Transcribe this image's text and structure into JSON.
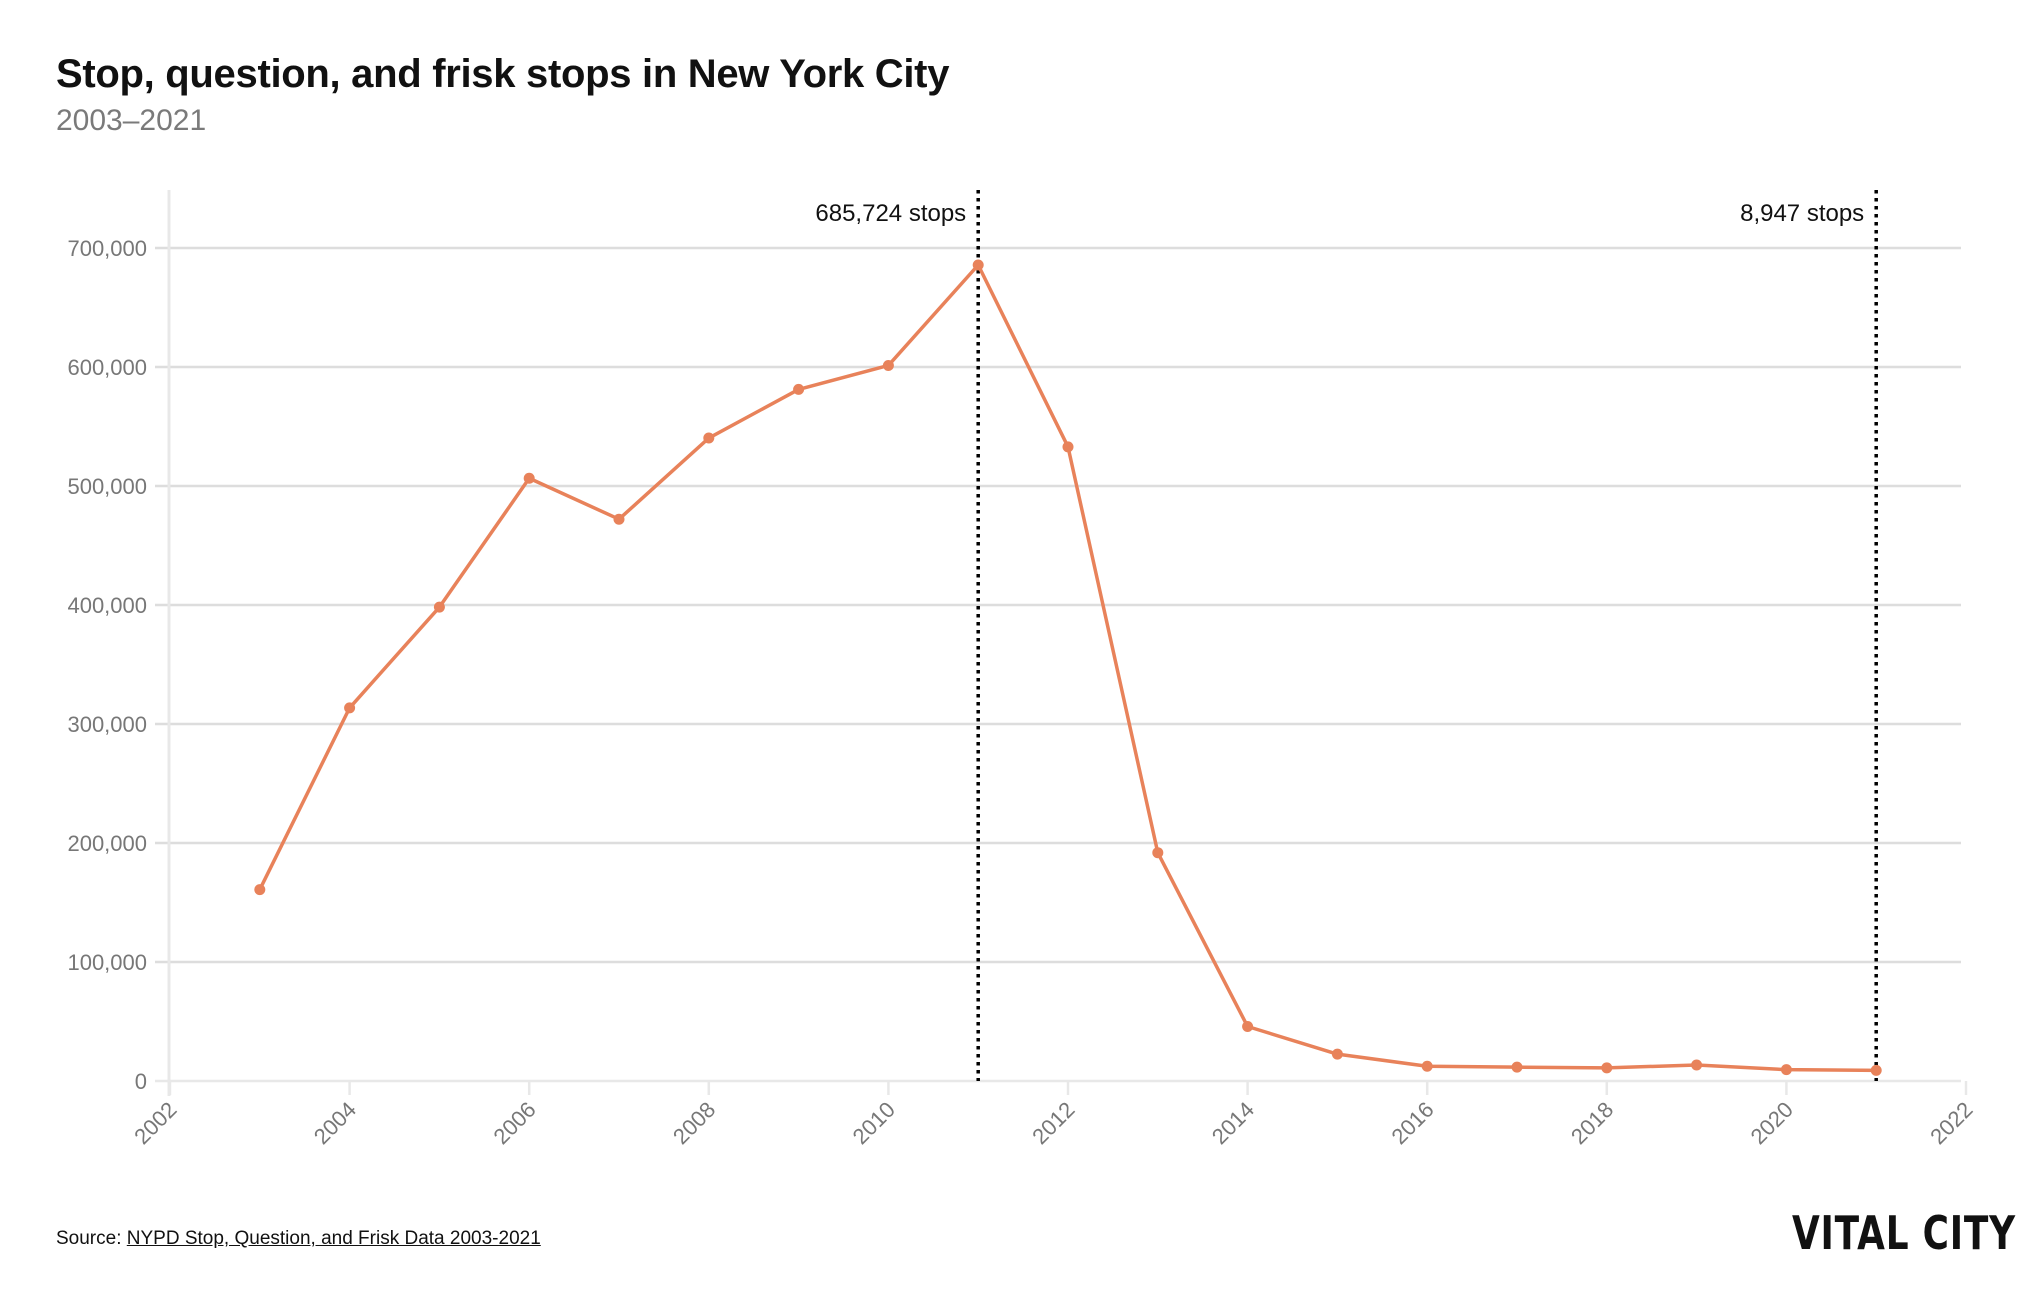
{
  "header": {
    "title": "Stop, question, and frisk stops in New York City",
    "subtitle": "2003–2021"
  },
  "annotations": [
    {
      "year": 2011,
      "label": "685,724 stops"
    },
    {
      "year": 2021,
      "label": "8,947 stops"
    }
  ],
  "footer": {
    "source_prefix": "Source: ",
    "source_link": "NYPD Stop, Question, and Frisk Data 2003-2021",
    "logo": "VITAL CITY"
  },
  "colors": {
    "line": "#E8825A",
    "grid": "#dddddd",
    "axis": "#e8e8e8",
    "tick_label": "#777777",
    "annotation_line": "#000000"
  },
  "chart_data": {
    "type": "line",
    "title": "Stop, question, and frisk stops in New York City",
    "subtitle": "2003–2021",
    "xlabel": "",
    "ylabel": "",
    "x": [
      2003,
      2004,
      2005,
      2006,
      2007,
      2008,
      2009,
      2010,
      2011,
      2012,
      2013,
      2014,
      2015,
      2016,
      2017,
      2018,
      2019,
      2020,
      2021
    ],
    "series": [
      {
        "name": "Stops",
        "values": [
          160851,
          313523,
          398191,
          506491,
          472096,
          540302,
          581168,
          601285,
          685724,
          532911,
          191851,
          45787,
          22563,
          12404,
          11629,
          11008,
          13459,
          9544,
          8947
        ]
      }
    ],
    "xlim": [
      2002,
      2022
    ],
    "ylim": [
      0,
      750000
    ],
    "x_ticks": [
      "2002",
      "2004",
      "2006",
      "2008",
      "2010",
      "2012",
      "2014",
      "2016",
      "2018",
      "2020",
      "2022"
    ],
    "y_ticks": [
      "0",
      "100,000",
      "200,000",
      "300,000",
      "400,000",
      "500,000",
      "600,000",
      "700,000"
    ],
    "grid": true,
    "legend": "none",
    "annotations": [
      {
        "x": 2011,
        "text": "685,724 stops",
        "style": "dotted vertical line"
      },
      {
        "x": 2021,
        "text": "8,947 stops",
        "style": "dotted vertical line"
      }
    ]
  }
}
